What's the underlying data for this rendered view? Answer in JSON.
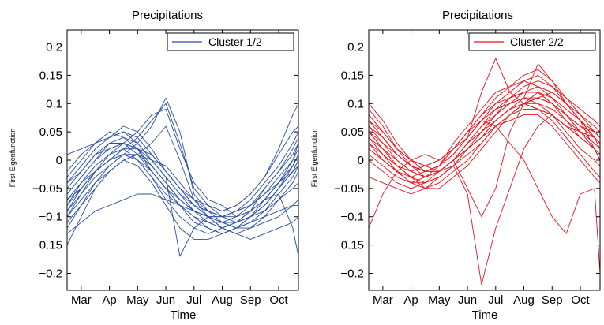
{
  "chart_data": [
    {
      "type": "line",
      "title": "Precipitations",
      "xlabel": "Time",
      "ylabel": "First Eigenfunction",
      "x_ticks": [
        "Mar",
        "Ap",
        "May",
        "Jun",
        "Jul",
        "Aug",
        "Sep",
        "Oct"
      ],
      "xlim": [
        0,
        8.2
      ],
      "ylim": [
        -0.23,
        0.23
      ],
      "y_ticks": [
        "0.2",
        "0.15",
        "0.1",
        "0.05",
        "0",
        "−0.05",
        "−0.1",
        "−0.15",
        "−0.2"
      ],
      "y_tick_values": [
        0.2,
        0.15,
        0.1,
        0.05,
        0,
        -0.05,
        -0.1,
        -0.15,
        -0.2
      ],
      "grid": false,
      "legend": {
        "label": "Cluster 1/2",
        "placement": "top-right"
      },
      "color": "#2b4ea2",
      "x": [
        0,
        0.5,
        1.0,
        1.5,
        2.0,
        2.5,
        3.0,
        3.5,
        4.0,
        4.5,
        5.0,
        5.5,
        6.0,
        6.5,
        7.0,
        7.5,
        8.0,
        8.2
      ],
      "series": [
        {
          "values": [
            -0.08,
            -0.04,
            -0.01,
            0.01,
            0.02,
            0.0,
            -0.03,
            -0.06,
            -0.08,
            -0.1,
            -0.11,
            -0.11,
            -0.1,
            -0.08,
            -0.05,
            -0.02,
            0.02,
            0.04
          ]
        },
        {
          "values": [
            -0.06,
            -0.03,
            0.0,
            0.02,
            0.03,
            0.02,
            -0.01,
            -0.04,
            -0.07,
            -0.09,
            -0.1,
            -0.1,
            -0.09,
            -0.07,
            -0.04,
            -0.01,
            0.03,
            0.05
          ]
        },
        {
          "values": [
            -0.1,
            -0.06,
            -0.02,
            0.0,
            0.01,
            0.0,
            -0.02,
            -0.05,
            -0.08,
            -0.11,
            -0.12,
            -0.13,
            -0.12,
            -0.1,
            -0.08,
            -0.05,
            -0.01,
            0.01
          ]
        },
        {
          "values": [
            -0.04,
            -0.01,
            0.02,
            0.04,
            0.05,
            0.04,
            0.01,
            -0.02,
            -0.05,
            -0.08,
            -0.09,
            -0.1,
            -0.09,
            -0.08,
            -0.06,
            -0.03,
            0.0,
            0.02
          ]
        },
        {
          "values": [
            -0.12,
            -0.08,
            -0.04,
            -0.01,
            0.01,
            0.0,
            -0.03,
            -0.07,
            -0.1,
            -0.12,
            -0.13,
            -0.12,
            -0.11,
            -0.09,
            -0.07,
            -0.04,
            0.0,
            0.03
          ]
        },
        {
          "values": [
            -0.07,
            -0.04,
            -0.02,
            0.0,
            0.02,
            0.04,
            0.07,
            0.1,
            0.03,
            -0.05,
            -0.08,
            -0.1,
            -0.11,
            -0.1,
            -0.08,
            -0.05,
            -0.02,
            0.0
          ]
        },
        {
          "values": [
            -0.09,
            -0.06,
            -0.03,
            -0.01,
            0.01,
            0.03,
            0.06,
            0.11,
            0.05,
            -0.06,
            -0.09,
            -0.11,
            -0.12,
            -0.11,
            -0.09,
            -0.06,
            -0.03,
            -0.01
          ]
        },
        {
          "values": [
            -0.05,
            -0.02,
            0.01,
            0.02,
            0.03,
            0.05,
            0.08,
            0.09,
            0.02,
            -0.04,
            -0.07,
            -0.08,
            -0.1,
            -0.09,
            -0.07,
            -0.04,
            -0.01,
            0.01
          ]
        },
        {
          "values": [
            -0.15,
            -0.1,
            -0.05,
            -0.02,
            0.0,
            -0.01,
            -0.04,
            -0.08,
            -0.12,
            -0.14,
            -0.14,
            -0.13,
            -0.12,
            -0.11,
            -0.1,
            -0.09,
            -0.08,
            -0.08
          ]
        },
        {
          "values": [
            -0.03,
            0.0,
            0.03,
            0.05,
            0.04,
            0.02,
            -0.02,
            -0.05,
            -0.07,
            -0.09,
            -0.1,
            -0.11,
            -0.12,
            -0.12,
            -0.11,
            -0.1,
            -0.08,
            -0.07
          ]
        },
        {
          "values": [
            -0.08,
            -0.05,
            -0.02,
            0.01,
            0.03,
            0.02,
            0.0,
            -0.03,
            -0.17,
            -0.12,
            -0.1,
            -0.12,
            -0.13,
            -0.14,
            -0.13,
            -0.12,
            -0.11,
            -0.1
          ]
        },
        {
          "values": [
            -0.13,
            -0.11,
            -0.09,
            -0.08,
            -0.07,
            -0.06,
            -0.06,
            -0.07,
            -0.08,
            -0.09,
            -0.1,
            -0.11,
            -0.11,
            -0.1,
            -0.08,
            -0.05,
            -0.02,
            0.0
          ]
        },
        {
          "values": [
            0.01,
            0.02,
            0.03,
            0.04,
            0.06,
            0.05,
            0.02,
            -0.02,
            -0.05,
            -0.07,
            -0.08,
            -0.09,
            -0.08,
            -0.06,
            -0.03,
            0.02,
            0.08,
            0.1
          ]
        },
        {
          "values": [
            -0.06,
            -0.03,
            0.0,
            0.03,
            0.03,
            0.01,
            -0.02,
            -0.05,
            -0.08,
            -0.1,
            -0.12,
            -0.13,
            -0.12,
            -0.1,
            -0.07,
            -0.06,
            -0.12,
            -0.17
          ]
        },
        {
          "values": [
            -0.1,
            -0.07,
            -0.04,
            -0.02,
            0.0,
            0.01,
            0.0,
            -0.01,
            -0.04,
            -0.07,
            -0.09,
            -0.1,
            -0.1,
            -0.09,
            -0.07,
            -0.04,
            -0.01,
            0.01
          ]
        },
        {
          "values": [
            -0.02,
            0.01,
            0.03,
            0.04,
            0.05,
            0.03,
            0.0,
            -0.03,
            -0.06,
            -0.08,
            -0.09,
            -0.09,
            -0.08,
            -0.06,
            -0.03,
            0.01,
            0.05,
            0.06
          ]
        },
        {
          "values": [
            -0.07,
            -0.05,
            -0.02,
            0.0,
            0.02,
            0.02,
            0.01,
            -0.02,
            -0.05,
            -0.08,
            -0.1,
            -0.11,
            -0.11,
            -0.1,
            -0.09,
            -0.07,
            -0.05,
            -0.04
          ]
        },
        {
          "values": [
            -0.11,
            -0.08,
            -0.05,
            -0.02,
            0.0,
            0.01,
            0.03,
            0.06,
            0.0,
            -0.07,
            -0.1,
            -0.12,
            -0.13,
            -0.12,
            -0.1,
            -0.07,
            -0.04,
            -0.02
          ]
        },
        {
          "values": [
            -0.04,
            -0.02,
            0.01,
            0.03,
            0.04,
            0.03,
            0.0,
            -0.03,
            -0.06,
            -0.09,
            -0.11,
            -0.12,
            -0.11,
            -0.09,
            -0.05,
            -0.02,
            0.01,
            0.03
          ]
        },
        {
          "values": [
            -0.09,
            -0.05,
            -0.02,
            0.0,
            0.01,
            0.01,
            -0.01,
            -0.04,
            -0.07,
            -0.09,
            -0.1,
            -0.1,
            -0.09,
            -0.08,
            -0.06,
            -0.04,
            -0.02,
            -0.01
          ]
        }
      ]
    },
    {
      "type": "line",
      "title": "Precipitations",
      "xlabel": "Time",
      "ylabel": "First Eigenfunction",
      "x_ticks": [
        "Mar",
        "Ap",
        "May",
        "Jun",
        "Jul",
        "Aug",
        "Sep",
        "Oct"
      ],
      "xlim": [
        0,
        8.2
      ],
      "ylim": [
        -0.23,
        0.23
      ],
      "y_ticks": [
        "0.2",
        "0.15",
        "0.1",
        "0.05",
        "0",
        "−0.05",
        "−0.1",
        "−0.15",
        "−0.2"
      ],
      "y_tick_values": [
        0.2,
        0.15,
        0.1,
        0.05,
        0,
        -0.05,
        -0.1,
        -0.15,
        -0.2
      ],
      "grid": false,
      "legend": {
        "label": "Cluster 2/2",
        "placement": "top-right"
      },
      "color": "#e8101a",
      "x": [
        0,
        0.5,
        1.0,
        1.5,
        2.0,
        2.5,
        3.0,
        3.5,
        4.0,
        4.5,
        5.0,
        5.5,
        6.0,
        6.5,
        7.0,
        7.5,
        8.0,
        8.2
      ],
      "series": [
        {
          "values": [
            0.05,
            0.02,
            -0.01,
            -0.02,
            -0.01,
            0.0,
            0.02,
            0.05,
            0.08,
            0.1,
            0.11,
            0.12,
            0.12,
            0.1,
            0.07,
            0.04,
            0.02,
            0.01
          ]
        },
        {
          "values": [
            0.03,
            0.0,
            -0.02,
            -0.03,
            -0.02,
            -0.01,
            0.01,
            0.04,
            0.07,
            0.09,
            0.1,
            0.11,
            0.1,
            0.08,
            0.05,
            0.02,
            0.0,
            -0.01
          ]
        },
        {
          "values": [
            0.07,
            0.04,
            0.01,
            -0.01,
            -0.02,
            -0.01,
            0.03,
            0.06,
            0.09,
            0.12,
            0.13,
            0.14,
            0.13,
            0.11,
            0.08,
            0.05,
            0.03,
            0.02
          ]
        },
        {
          "values": [
            0.0,
            -0.02,
            -0.04,
            -0.05,
            -0.04,
            -0.02,
            0.0,
            0.03,
            0.05,
            0.07,
            0.09,
            0.1,
            0.09,
            0.07,
            0.04,
            0.01,
            -0.02,
            -0.03
          ]
        },
        {
          "values": [
            0.09,
            0.06,
            0.02,
            -0.01,
            -0.03,
            -0.02,
            0.0,
            0.03,
            0.06,
            0.09,
            0.11,
            0.12,
            0.12,
            0.1,
            0.08,
            0.06,
            0.05,
            0.04
          ]
        },
        {
          "values": [
            -0.12,
            -0.06,
            -0.02,
            0.0,
            0.01,
            0.0,
            0.02,
            0.05,
            0.08,
            0.11,
            0.13,
            0.15,
            0.16,
            0.14,
            0.11,
            0.08,
            0.05,
            0.04
          ]
        },
        {
          "values": [
            0.04,
            0.01,
            -0.01,
            -0.03,
            -0.04,
            -0.03,
            -0.01,
            0.02,
            0.04,
            0.07,
            0.09,
            0.1,
            0.11,
            0.1,
            0.08,
            0.06,
            0.04,
            0.03
          ]
        },
        {
          "values": [
            0.06,
            0.03,
            0.0,
            -0.02,
            -0.03,
            -0.02,
            0.0,
            -0.05,
            -0.1,
            -0.05,
            0.05,
            0.1,
            0.12,
            0.11,
            0.09,
            0.07,
            0.05,
            0.04
          ]
        },
        {
          "values": [
            0.02,
            0.0,
            -0.02,
            -0.04,
            -0.05,
            -0.05,
            -0.03,
            -0.01,
            0.02,
            0.05,
            0.08,
            0.1,
            0.11,
            0.12,
            0.1,
            0.07,
            0.02,
            0.0
          ]
        },
        {
          "values": [
            0.08,
            0.05,
            0.02,
            0.0,
            -0.01,
            -0.02,
            0.0,
            0.02,
            0.05,
            0.08,
            0.1,
            0.12,
            0.13,
            0.12,
            0.1,
            0.07,
            0.04,
            0.03
          ]
        },
        {
          "values": [
            0.03,
            0.01,
            -0.02,
            -0.04,
            -0.03,
            -0.01,
            0.02,
            0.05,
            0.07,
            0.06,
            0.03,
            0.0,
            -0.05,
            -0.1,
            -0.13,
            -0.06,
            -0.05,
            -0.2
          ]
        },
        {
          "values": [
            0.01,
            -0.01,
            -0.03,
            -0.04,
            -0.04,
            -0.03,
            -0.01,
            -0.06,
            -0.22,
            -0.12,
            -0.05,
            0.02,
            0.06,
            0.08,
            0.06,
            0.04,
            0.02,
            0.01
          ]
        },
        {
          "values": [
            0.05,
            0.03,
            0.01,
            -0.01,
            -0.02,
            -0.01,
            0.01,
            0.04,
            0.12,
            0.18,
            0.12,
            0.1,
            0.09,
            0.08,
            0.06,
            0.05,
            0.04,
            0.03
          ]
        },
        {
          "values": [
            0.06,
            0.04,
            0.01,
            -0.01,
            -0.02,
            -0.02,
            0.0,
            0.02,
            0.04,
            0.07,
            0.09,
            0.11,
            0.17,
            0.14,
            0.1,
            0.07,
            0.04,
            0.02
          ]
        },
        {
          "values": [
            0.04,
            0.02,
            -0.01,
            -0.03,
            -0.05,
            -0.04,
            -0.02,
            0.0,
            0.03,
            0.06,
            0.08,
            0.1,
            0.1,
            0.09,
            0.07,
            0.05,
            0.04,
            0.03
          ]
        },
        {
          "values": [
            0.02,
            0.0,
            -0.02,
            -0.03,
            -0.03,
            -0.02,
            -0.01,
            0.01,
            0.03,
            0.06,
            0.08,
            0.09,
            0.09,
            0.08,
            0.06,
            0.04,
            0.02,
            0.0
          ]
        },
        {
          "values": [
            0.07,
            0.05,
            0.02,
            0.0,
            -0.01,
            0.0,
            0.02,
            0.04,
            0.07,
            0.1,
            0.12,
            0.14,
            0.15,
            0.13,
            0.1,
            0.08,
            0.06,
            0.05
          ]
        },
        {
          "values": [
            -0.03,
            -0.04,
            -0.05,
            -0.06,
            -0.05,
            -0.03,
            -0.01,
            0.02,
            0.04,
            0.06,
            0.07,
            0.08,
            0.08,
            0.06,
            0.03,
            0.0,
            -0.03,
            -0.04
          ]
        },
        {
          "values": [
            0.05,
            0.02,
            0.0,
            -0.02,
            -0.03,
            -0.02,
            0.0,
            0.03,
            0.06,
            0.08,
            0.1,
            0.11,
            0.11,
            0.1,
            0.08,
            0.05,
            0.02,
            0.0
          ]
        },
        {
          "values": [
            0.1,
            0.07,
            0.03,
            0.0,
            -0.02,
            -0.02,
            0.0,
            0.03,
            0.05,
            0.08,
            0.11,
            0.13,
            0.14,
            0.13,
            0.11,
            0.09,
            0.07,
            0.06
          ]
        }
      ]
    }
  ]
}
